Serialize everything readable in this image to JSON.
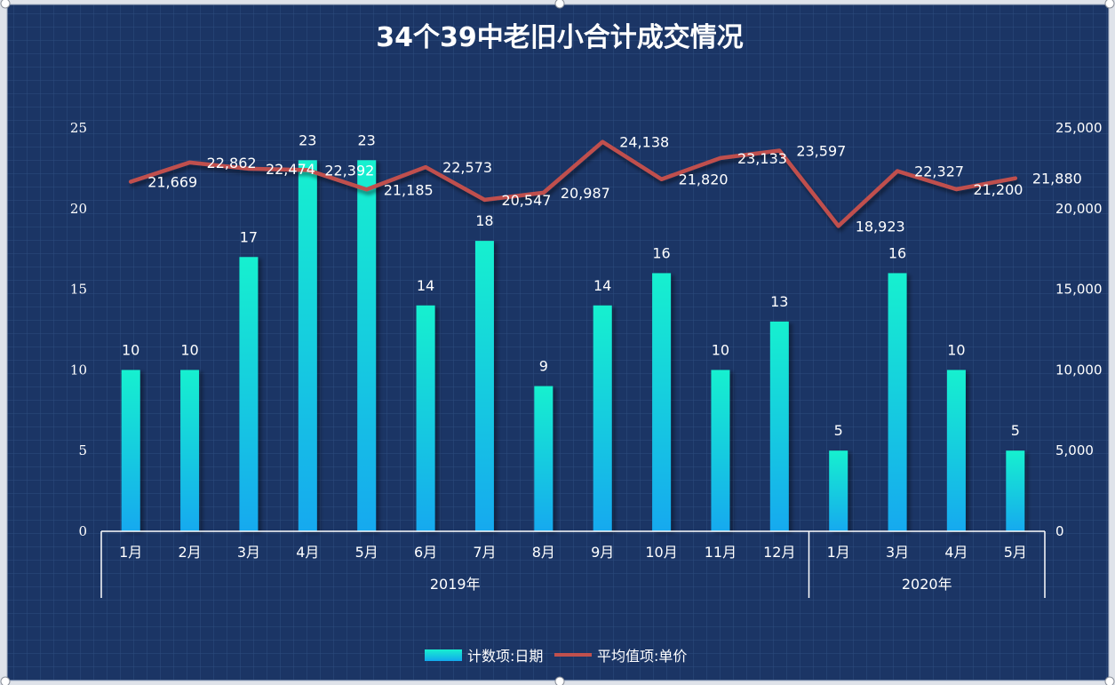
{
  "chart_data": {
    "type": "bar",
    "title": "34个39中老旧小合计成交情况",
    "groups": [
      {
        "label": "2019年",
        "categories": [
          "1月",
          "2月",
          "3月",
          "4月",
          "5月",
          "6月",
          "7月",
          "8月",
          "9月",
          "10月",
          "11月",
          "12月"
        ]
      },
      {
        "label": "2020年",
        "categories": [
          "1月",
          "3月",
          "4月",
          "5月"
        ]
      }
    ],
    "series": [
      {
        "name": "计数项:日期",
        "type": "bar",
        "axis": "left",
        "values": [
          10,
          10,
          17,
          23,
          23,
          14,
          18,
          9,
          14,
          16,
          10,
          13,
          5,
          16,
          10,
          5
        ],
        "labels": [
          "10",
          "10",
          "17",
          "23",
          "23",
          "14",
          "18",
          "9",
          "14",
          "16",
          "10",
          "13",
          "5",
          "16",
          "10",
          "5"
        ]
      },
      {
        "name": "平均值项:单价",
        "type": "line",
        "axis": "right",
        "values": [
          21669,
          22862,
          22474,
          22392,
          21185,
          22573,
          20547,
          20987,
          24138,
          21820,
          23133,
          23597,
          18923,
          22327,
          21200,
          21880
        ],
        "labels": [
          "21,669",
          "22,862",
          "22,474",
          "22,392",
          "21,185",
          "22,573",
          "20,547",
          "20,987",
          "24,138",
          "21,820",
          "23,133",
          "23,597",
          "18,923",
          "22,327",
          "21,200",
          "21,880"
        ]
      }
    ],
    "y_left": {
      "min": 0,
      "max": 25,
      "ticks": [
        "0",
        "5",
        "10",
        "15",
        "20",
        "25"
      ]
    },
    "y_right": {
      "min": 0,
      "max": 25000,
      "ticks": [
        "0",
        "5,000",
        "10,000",
        "15,000",
        "20,000",
        "25,000"
      ]
    },
    "legend_position": "bottom-center",
    "colors": {
      "background": "#1b3565",
      "grid": "#2e4d80",
      "bar_top": "#18f0cf",
      "bar_bottom": "#12a9ef",
      "line": "#c0504d",
      "axis": "#ffffff"
    }
  }
}
